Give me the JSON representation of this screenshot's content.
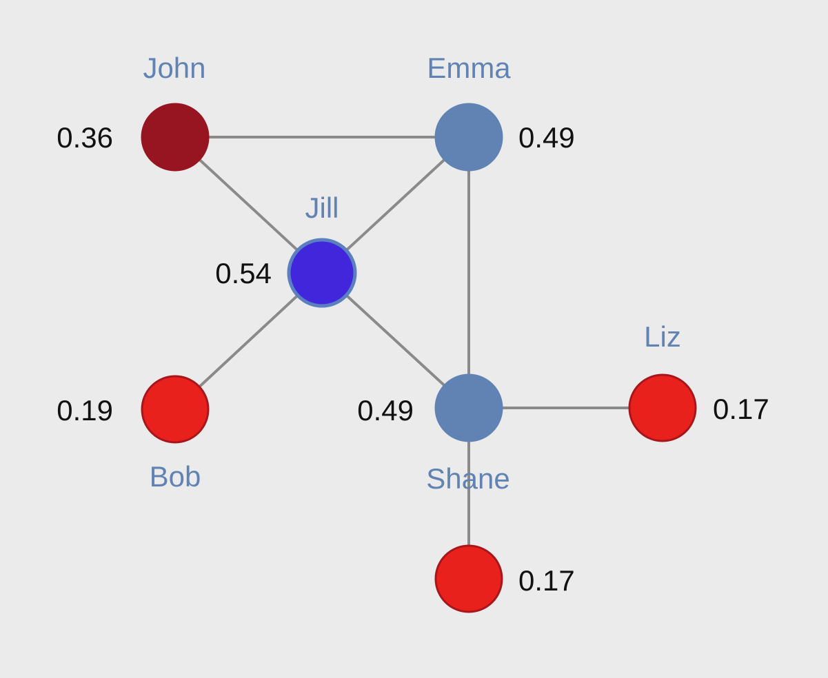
{
  "colors": {
    "background": "#ebebeb",
    "edge": "#8a8a8a",
    "name_text": "#6183b4",
    "score_text": "#111111"
  },
  "nodes": [
    {
      "id": "john",
      "name": "John",
      "score": "0.36",
      "fill": "#961520",
      "stroke": "#961520"
    },
    {
      "id": "emma",
      "name": "Emma",
      "score": "0.49",
      "fill": "#6183b4",
      "stroke": "#6183b4"
    },
    {
      "id": "jill",
      "name": "Jill",
      "score": "0.54",
      "fill": "#4226dc",
      "stroke": "#5c7fc0"
    },
    {
      "id": "bob",
      "name": "Bob",
      "score": "0.19",
      "fill": "#e8211c",
      "stroke": "#a8161c"
    },
    {
      "id": "shane",
      "name": "Shane",
      "score": "0.49",
      "fill": "#6183b4",
      "stroke": "#6183b4"
    },
    {
      "id": "liz",
      "name": "Liz",
      "score": "0.17",
      "fill": "#e8211c",
      "stroke": "#a8161c"
    },
    {
      "id": "bottom",
      "name": "",
      "score": "0.17",
      "fill": "#e8211c",
      "stroke": "#a8161c"
    }
  ],
  "edges": [
    [
      "john",
      "emma"
    ],
    [
      "john",
      "jill"
    ],
    [
      "emma",
      "jill"
    ],
    [
      "emma",
      "shane"
    ],
    [
      "jill",
      "bob"
    ],
    [
      "jill",
      "shane"
    ],
    [
      "shane",
      "liz"
    ],
    [
      "shane",
      "bottom"
    ]
  ]
}
